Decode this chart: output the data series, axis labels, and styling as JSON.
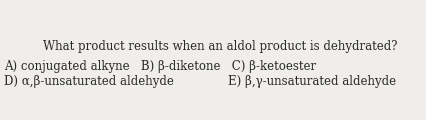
{
  "background_color": "#f0eeeb",
  "line1": "What product results when an aldol product is dehydrated?",
  "line2": "A) conjugated alkyne   B) β-diketone   C) β-ketoester",
  "line3_left": "D) α,β-unsaturated aldehyde",
  "line3_right": "E) β,γ-unsaturated aldehyde",
  "font_size": 8.5,
  "text_color": "#2a2a2a"
}
